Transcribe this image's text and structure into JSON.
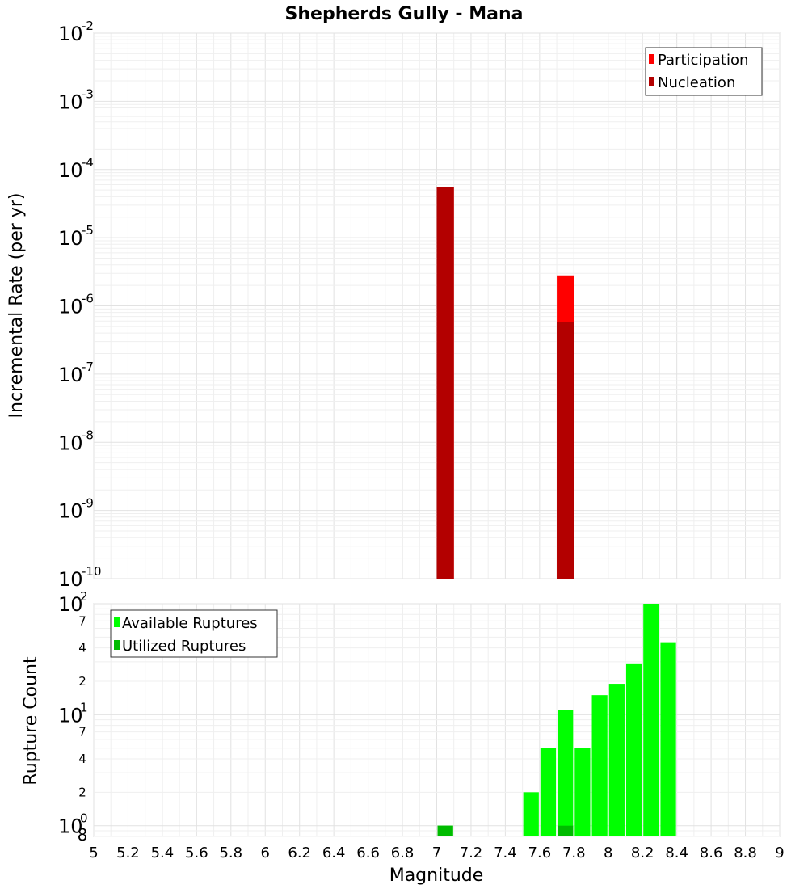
{
  "chart_data": [
    {
      "type": "bar",
      "title": "Shepherds Gully - Mana",
      "xlabel": "Magnitude",
      "ylabel": "Incremental Rate (per yr)",
      "xlim": [
        5,
        9
      ],
      "ylim": [
        1e-10,
        0.01
      ],
      "yscale": "log",
      "bin_width": 0.1,
      "grid": true,
      "legend_position": "top-right",
      "y_tick_labels": [
        {
          "value": 1e-10,
          "base": "10",
          "exp": "-10"
        },
        {
          "value": 1e-09,
          "base": "10",
          "exp": "-9"
        },
        {
          "value": 1e-08,
          "base": "10",
          "exp": "-8"
        },
        {
          "value": 1e-07,
          "base": "10",
          "exp": "-7"
        },
        {
          "value": 1e-06,
          "base": "10",
          "exp": "-6"
        },
        {
          "value": 1e-05,
          "base": "10",
          "exp": "-5"
        },
        {
          "value": 0.0001,
          "base": "10",
          "exp": "-4"
        },
        {
          "value": 0.001,
          "base": "10",
          "exp": "-3"
        },
        {
          "value": 0.01,
          "base": "10",
          "exp": "-2"
        }
      ],
      "series": [
        {
          "name": "Participation",
          "color": "#ff0000",
          "x": [
            7.05,
            7.75
          ],
          "values": [
            5.5e-05,
            2.8e-06
          ]
        },
        {
          "name": "Nucleation",
          "color": "#b30000",
          "x": [
            7.05,
            7.75
          ],
          "values": [
            5.5e-05,
            5.8e-07
          ]
        }
      ]
    },
    {
      "type": "bar",
      "xlabel": "Magnitude",
      "ylabel": "Rupture Count",
      "xlim": [
        5,
        9
      ],
      "ylim": [
        0.8,
        100
      ],
      "yscale": "log",
      "bin_width": 0.1,
      "grid": true,
      "legend_position": "top-left",
      "x_tick_labels": [
        "5",
        "5.2",
        "5.4",
        "5.6",
        "5.8",
        "6",
        "6.2",
        "6.4",
        "6.6",
        "6.8",
        "7",
        "7.2",
        "7.4",
        "7.6",
        "7.8",
        "8",
        "8.2",
        "8.4",
        "8.6",
        "8.8",
        "9"
      ],
      "y_tick_labels": [
        {
          "value": 1,
          "base": "10",
          "exp": "0"
        },
        {
          "value": 10,
          "base": "10",
          "exp": "1"
        },
        {
          "value": 100,
          "base": "10",
          "exp": "2"
        }
      ],
      "y_minor_labels": [
        {
          "value": 0.8,
          "label": "8"
        },
        {
          "value": 2,
          "label": "2"
        },
        {
          "value": 4,
          "label": "4"
        },
        {
          "value": 7,
          "label": "7"
        },
        {
          "value": 20,
          "label": "2"
        },
        {
          "value": 40,
          "label": "4"
        },
        {
          "value": 70,
          "label": "7"
        }
      ],
      "series": [
        {
          "name": "Available Ruptures",
          "color": "#00ff00",
          "x": [
            7.05,
            7.55,
            7.65,
            7.75,
            7.85,
            7.95,
            8.05,
            8.15,
            8.25,
            8.35
          ],
          "values": [
            1,
            2,
            5,
            11,
            5,
            15,
            19,
            29,
            100,
            45
          ]
        },
        {
          "name": "Utilized Ruptures",
          "color": "#00bb00",
          "x": [
            7.05,
            7.75
          ],
          "values": [
            1,
            1
          ]
        }
      ]
    }
  ]
}
